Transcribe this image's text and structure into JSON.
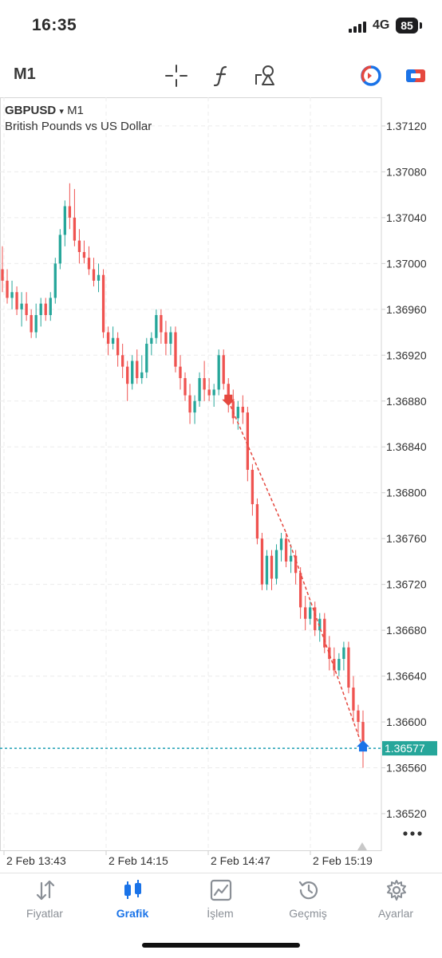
{
  "status": {
    "time": "16:35",
    "network": "4G",
    "battery": "85"
  },
  "toolbar": {
    "timeframe": "M1",
    "icons": [
      "crosshair-icon",
      "function-icon",
      "shapes-icon",
      "trade-timer-icon",
      "trade-icon"
    ]
  },
  "chart": {
    "symbol": "GBPUSD",
    "timeframe": "M1",
    "description": "British Pounds vs US Dollar",
    "current_price": "1.36577",
    "price_labels": [
      "1.37120",
      "1.37080",
      "1.37040",
      "1.37000",
      "1.36960",
      "1.36920",
      "1.36880",
      "1.36840",
      "1.36800",
      "1.36760",
      "1.36720",
      "1.36680",
      "1.36640",
      "1.36600",
      "1.36560",
      "1.36520"
    ],
    "time_labels": [
      "2 Feb 13:43",
      "2 Feb 14:15",
      "2 Feb 14:47",
      "2 Feb 15:19"
    ]
  },
  "chart_data": {
    "type": "candlestick",
    "yticks": [
      1.3712,
      1.3708,
      1.3704,
      1.37,
      1.3696,
      1.3692,
      1.3688,
      1.3684,
      1.368,
      1.3676,
      1.3672,
      1.3668,
      1.3664,
      1.366,
      1.3656,
      1.3652
    ],
    "ylim": [
      1.36488,
      1.37145
    ],
    "xticks": [
      "2 Feb 13:43",
      "2 Feb 14:15",
      "2 Feb 14:47",
      "2 Feb 15:19"
    ],
    "grid": true,
    "current_price": 1.36577,
    "ohlc": [
      [
        1.36995,
        1.37015,
        1.36975,
        1.36985
      ],
      [
        1.36985,
        1.36995,
        1.36965,
        1.3697
      ],
      [
        1.3697,
        1.36985,
        1.3696,
        1.36975
      ],
      [
        1.36975,
        1.3698,
        1.36955,
        1.3696
      ],
      [
        1.3696,
        1.36975,
        1.36945,
        1.36965
      ],
      [
        1.36965,
        1.36975,
        1.3695,
        1.36955
      ],
      [
        1.36955,
        1.3696,
        1.36935,
        1.3694
      ],
      [
        1.3694,
        1.36965,
        1.36935,
        1.36955
      ],
      [
        1.36955,
        1.3697,
        1.36945,
        1.36965
      ],
      [
        1.36965,
        1.3697,
        1.3695,
        1.36955
      ],
      [
        1.36955,
        1.36975,
        1.3695,
        1.3697
      ],
      [
        1.3697,
        1.37005,
        1.36965,
        1.37
      ],
      [
        1.37,
        1.3703,
        1.36995,
        1.37025
      ],
      [
        1.37025,
        1.37055,
        1.37015,
        1.3705
      ],
      [
        1.3705,
        1.3707,
        1.3703,
        1.3704
      ],
      [
        1.3704,
        1.37065,
        1.37015,
        1.3702
      ],
      [
        1.3702,
        1.3703,
        1.37,
        1.3701
      ],
      [
        1.3701,
        1.3702,
        1.37,
        1.37005
      ],
      [
        1.37005,
        1.37015,
        1.3699,
        1.36995
      ],
      [
        1.36995,
        1.37005,
        1.3698,
        1.36985
      ],
      [
        1.36985,
        1.37,
        1.36975,
        1.3699
      ],
      [
        1.3699,
        1.36995,
        1.36935,
        1.3694
      ],
      [
        1.3694,
        1.36945,
        1.3692,
        1.3693
      ],
      [
        1.3693,
        1.36945,
        1.36925,
        1.36935
      ],
      [
        1.36935,
        1.3694,
        1.3691,
        1.3692
      ],
      [
        1.3692,
        1.3693,
        1.369,
        1.3691
      ],
      [
        1.3691,
        1.36915,
        1.3688,
        1.36895
      ],
      [
        1.36895,
        1.3692,
        1.3689,
        1.36915
      ],
      [
        1.36915,
        1.36925,
        1.36895,
        1.369
      ],
      [
        1.369,
        1.3692,
        1.36895,
        1.36905
      ],
      [
        1.36905,
        1.36935,
        1.369,
        1.3693
      ],
      [
        1.3693,
        1.3694,
        1.3692,
        1.36935
      ],
      [
        1.36935,
        1.3696,
        1.3693,
        1.36955
      ],
      [
        1.36955,
        1.3696,
        1.3693,
        1.3694
      ],
      [
        1.3694,
        1.3695,
        1.3692,
        1.3693
      ],
      [
        1.3693,
        1.36945,
        1.3692,
        1.3694
      ],
      [
        1.3694,
        1.36945,
        1.36905,
        1.3691
      ],
      [
        1.3691,
        1.3692,
        1.3689,
        1.369
      ],
      [
        1.369,
        1.36905,
        1.3688,
        1.36885
      ],
      [
        1.36885,
        1.36895,
        1.3686,
        1.3687
      ],
      [
        1.3687,
        1.36885,
        1.3686,
        1.3688
      ],
      [
        1.3688,
        1.36905,
        1.36875,
        1.369
      ],
      [
        1.369,
        1.36915,
        1.3688,
        1.3689
      ],
      [
        1.3689,
        1.369,
        1.3688,
        1.36885
      ],
      [
        1.36885,
        1.36895,
        1.36875,
        1.3689
      ],
      [
        1.3689,
        1.36925,
        1.36885,
        1.3692
      ],
      [
        1.3692,
        1.36925,
        1.3689,
        1.36895
      ],
      [
        1.36895,
        1.369,
        1.3687,
        1.3688
      ],
      [
        1.3688,
        1.3689,
        1.3686,
        1.36865
      ],
      [
        1.36865,
        1.3688,
        1.36855,
        1.36875
      ],
      [
        1.36875,
        1.36885,
        1.3686,
        1.3687
      ],
      [
        1.3687,
        1.36875,
        1.3681,
        1.3682
      ],
      [
        1.3682,
        1.36825,
        1.3678,
        1.3679
      ],
      [
        1.3679,
        1.36795,
        1.36755,
        1.3676
      ],
      [
        1.3676,
        1.36765,
        1.36715,
        1.3672
      ],
      [
        1.3672,
        1.3675,
        1.36715,
        1.36745
      ],
      [
        1.36745,
        1.3675,
        1.36715,
        1.36725
      ],
      [
        1.36725,
        1.36755,
        1.3672,
        1.3675
      ],
      [
        1.3675,
        1.36765,
        1.3674,
        1.3676
      ],
      [
        1.3676,
        1.36765,
        1.36735,
        1.3674
      ],
      [
        1.3674,
        1.36755,
        1.3673,
        1.36745
      ],
      [
        1.36745,
        1.3675,
        1.3672,
        1.3673
      ],
      [
        1.3673,
        1.36735,
        1.3669,
        1.367
      ],
      [
        1.367,
        1.3671,
        1.3668,
        1.3669
      ],
      [
        1.3669,
        1.36705,
        1.36685,
        1.367
      ],
      [
        1.367,
        1.36705,
        1.36675,
        1.3668
      ],
      [
        1.3668,
        1.36695,
        1.3667,
        1.3669
      ],
      [
        1.3669,
        1.36695,
        1.3666,
        1.36665
      ],
      [
        1.36665,
        1.36675,
        1.36645,
        1.36655
      ],
      [
        1.36655,
        1.36665,
        1.3664,
        1.36645
      ],
      [
        1.36645,
        1.3666,
        1.3664,
        1.36655
      ],
      [
        1.36655,
        1.3667,
        1.36645,
        1.36665
      ],
      [
        1.36665,
        1.3667,
        1.36625,
        1.3663
      ],
      [
        1.3663,
        1.3664,
        1.366,
        1.3661
      ],
      [
        1.3661,
        1.36615,
        1.3659,
        1.366
      ],
      [
        1.366,
        1.3661,
        1.3656,
        1.36577
      ]
    ]
  },
  "tabs": [
    {
      "label": "Fiyatlar",
      "icon": "quotes-arrows-icon"
    },
    {
      "label": "Grafik",
      "icon": "candles-icon",
      "active": true
    },
    {
      "label": "İşlem",
      "icon": "trade-chart-icon"
    },
    {
      "label": "Geçmiş",
      "icon": "history-clock-icon"
    },
    {
      "label": "Ayarlar",
      "icon": "settings-gear-icon"
    }
  ]
}
